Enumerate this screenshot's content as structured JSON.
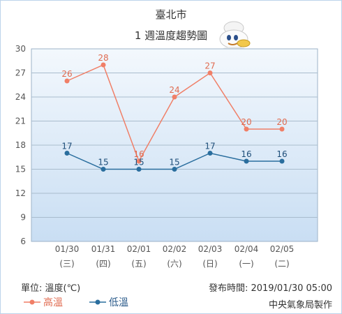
{
  "chart_data": {
    "type": "line",
    "title": "臺北市",
    "subtitle": "1 週溫度趨勢圖",
    "categories": [
      "01/30",
      "01/31",
      "02/01",
      "02/02",
      "02/03",
      "02/04",
      "02/05"
    ],
    "weekdays": [
      "(三)",
      "(四)",
      "(五)",
      "(六)",
      "(日)",
      "(一)",
      "(二)"
    ],
    "ylim": [
      6,
      30
    ],
    "yticks": [
      6,
      9,
      12,
      15,
      18,
      21,
      24,
      27,
      30
    ],
    "grid": true,
    "series": [
      {
        "name": "高溫",
        "values": [
          26,
          28,
          16,
          24,
          27,
          20,
          20
        ],
        "color": "#f07f67",
        "label_color": "#e06b50"
      },
      {
        "name": "低溫",
        "values": [
          17,
          15,
          15,
          15,
          17,
          16,
          16
        ],
        "color": "#2a6e9e",
        "label_color": "#1f4f7a"
      }
    ]
  },
  "footer": {
    "unit": "單位: 溫度(℃)",
    "published": "發布時間: 2019/01/30 05:00",
    "agency": "中央氣象局製作"
  },
  "mascot_icon": "weather-mascot-icon"
}
